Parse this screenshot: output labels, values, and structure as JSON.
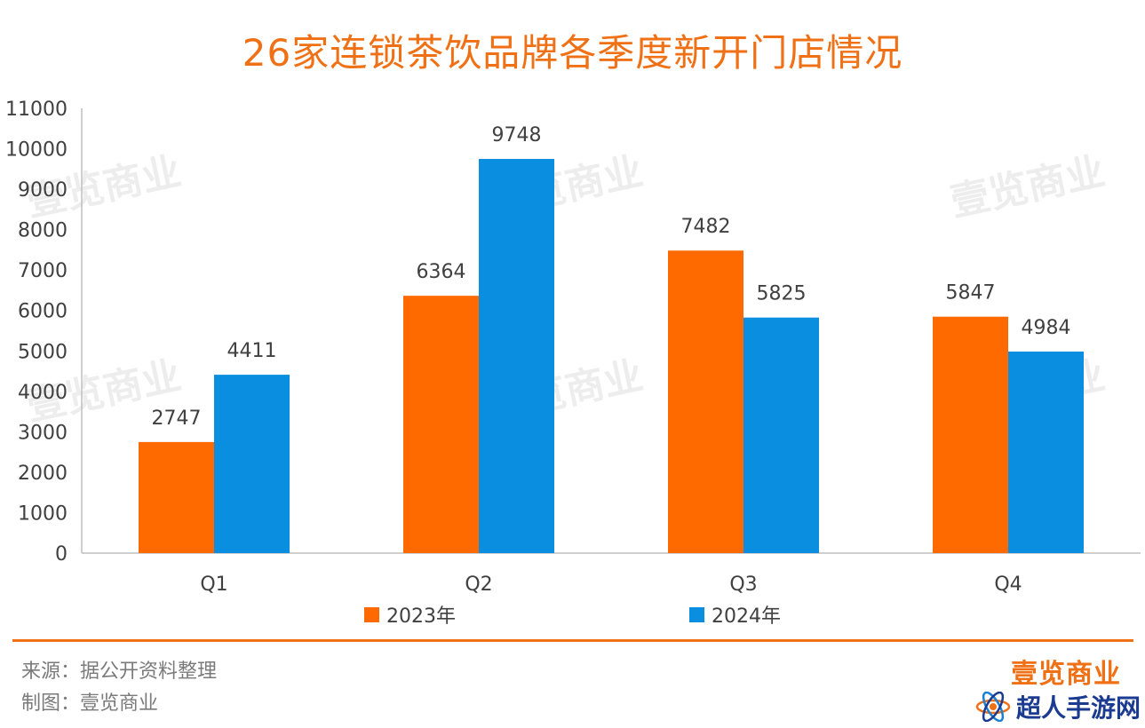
{
  "title": "26家连锁茶饮品牌各季度新开门店情况",
  "chart_data": {
    "type": "bar",
    "title": "26家连锁茶饮品牌各季度新开门店情况",
    "categories": [
      "Q1",
      "Q2",
      "Q3",
      "Q4"
    ],
    "series": [
      {
        "name": "2023年",
        "values": [
          2747,
          6364,
          7482,
          5847
        ],
        "color": "#ff6a00"
      },
      {
        "name": "2024年",
        "values": [
          4411,
          9748,
          5825,
          4984
        ],
        "color": "#0a8ee0"
      }
    ],
    "ylim": [
      0,
      11000
    ],
    "yticks": [
      0,
      1000,
      2000,
      3000,
      4000,
      5000,
      6000,
      7000,
      8000,
      9000,
      10000,
      11000
    ],
    "grid": false,
    "legend_position": "bottom"
  },
  "watermark": "壹览商业",
  "footer": {
    "source": "来源：据公开资料整理",
    "made_by": "制图：壹览商业",
    "brand": "壹览商业",
    "partner": "超人手游网"
  },
  "colors": {
    "accent": "#f07015",
    "series_2023": "#ff6a00",
    "series_2024": "#0a8ee0"
  }
}
